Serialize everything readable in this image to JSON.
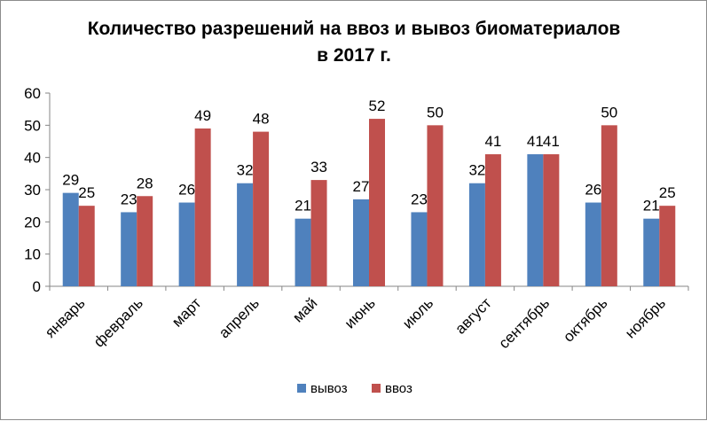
{
  "chart_data": {
    "type": "bar",
    "title": "Количество разрешений на ввоз и вывоз биоматериалов",
    "subtitle": "в 2017 г.",
    "xlabel": "",
    "ylabel": "",
    "ylim": [
      0,
      60
    ],
    "yticks": [
      0,
      10,
      20,
      30,
      40,
      50,
      60
    ],
    "grid": false,
    "legend_position": "bottom",
    "categories": [
      "январь",
      "февраль",
      "март",
      "апрель",
      "май",
      "июнь",
      "июль",
      "август",
      "сентябрь",
      "октябрь",
      "ноябрь"
    ],
    "series": [
      {
        "name": "вывоз",
        "color": "#4f81bd",
        "values": [
          29,
          23,
          26,
          32,
          21,
          27,
          23,
          32,
          41,
          26,
          21
        ]
      },
      {
        "name": "ввоз",
        "color": "#c0504d",
        "values": [
          25,
          28,
          49,
          48,
          33,
          52,
          50,
          41,
          41,
          50,
          25
        ]
      }
    ]
  }
}
